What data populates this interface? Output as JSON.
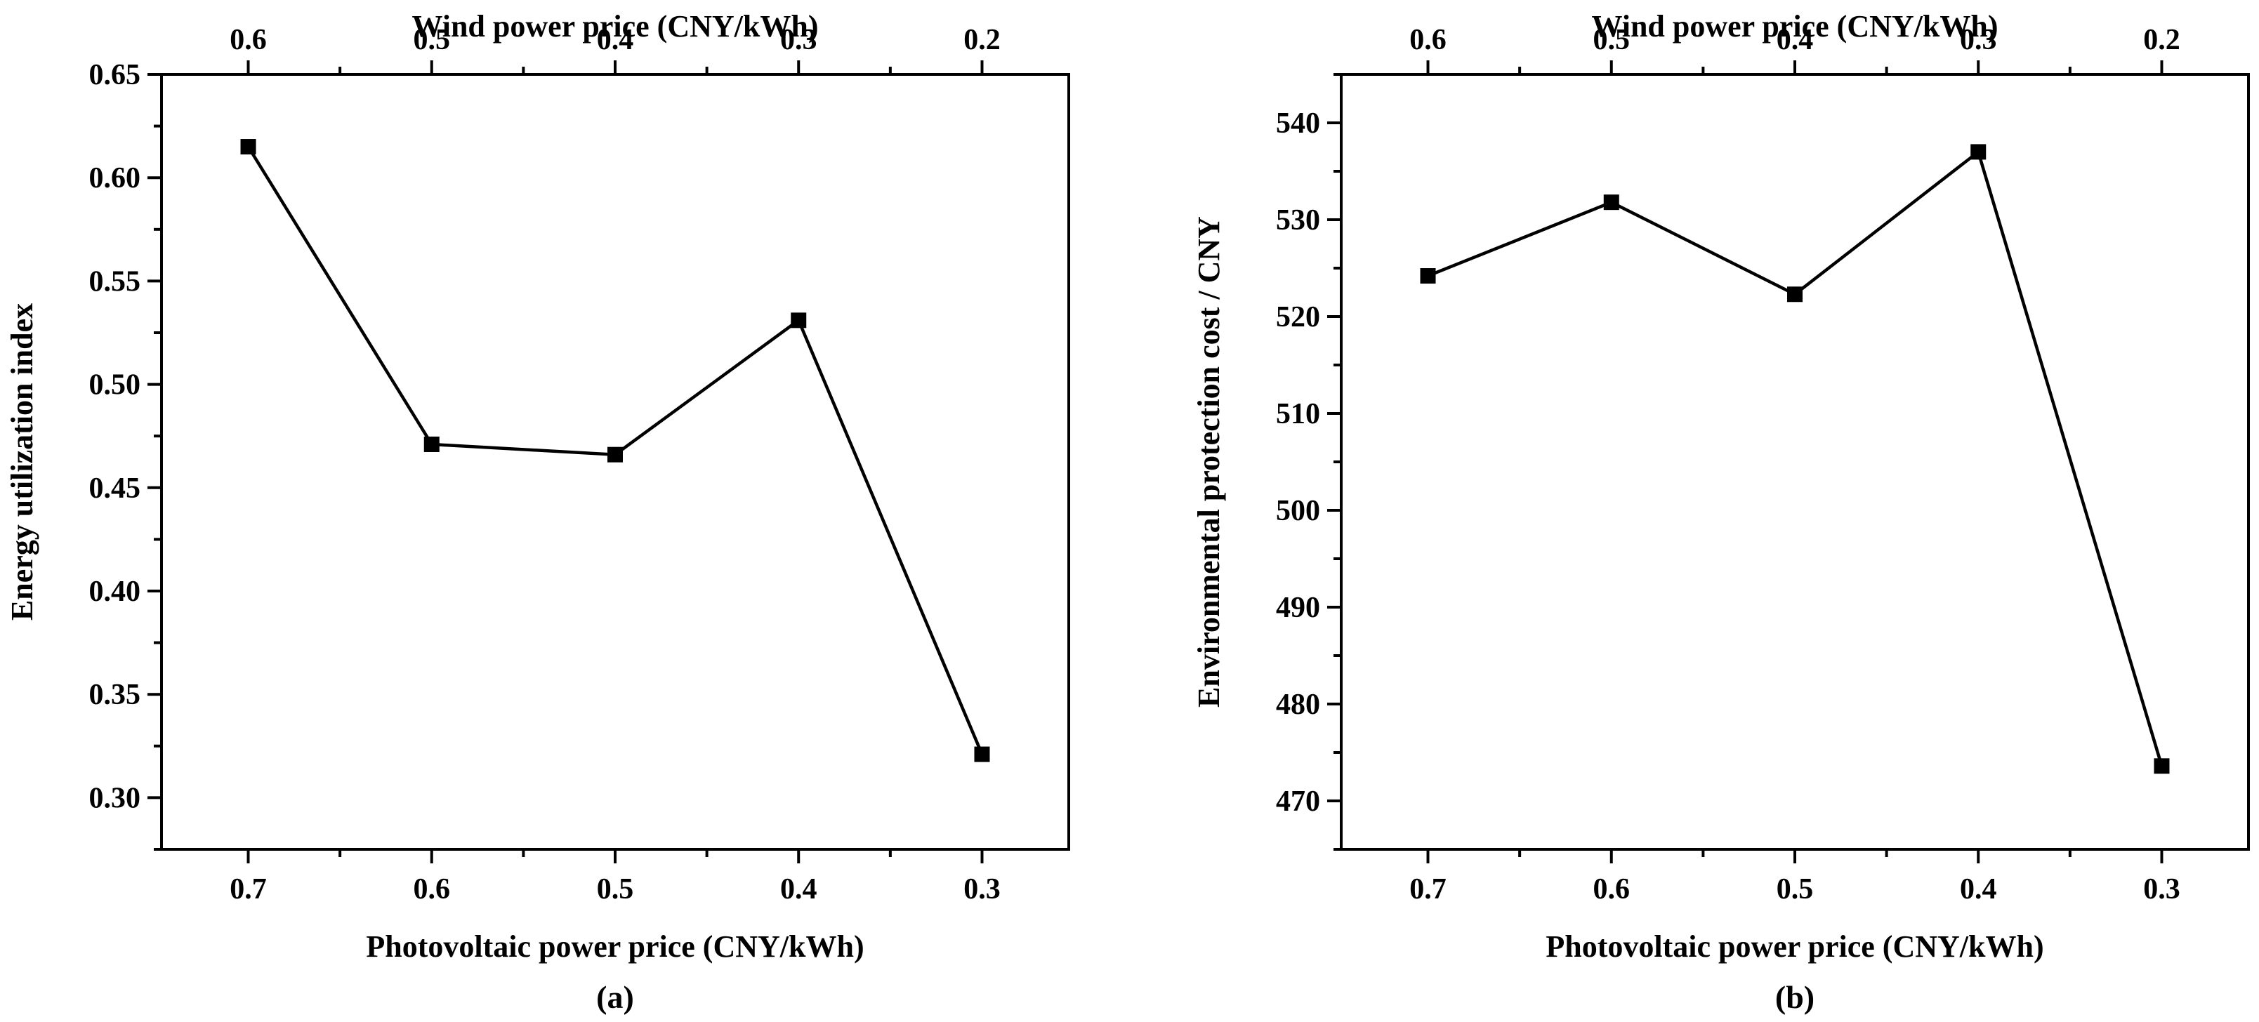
{
  "chart_data": [
    {
      "type": "line",
      "panel_label": "(a)",
      "x": [
        0.7,
        0.6,
        0.5,
        0.4,
        0.3
      ],
      "x_tick_labels": [
        "0.7",
        "0.6",
        "0.5",
        "0.4",
        "0.3"
      ],
      "top_x": [
        0.6,
        0.5,
        0.4,
        0.3,
        0.2
      ],
      "top_tick_labels": [
        "0.6",
        "0.5",
        "0.4",
        "0.3",
        "0.2"
      ],
      "values": [
        0.615,
        0.471,
        0.466,
        0.531,
        0.321
      ],
      "xlabel": "Photovoltaic power price (CNY/kWh)",
      "top_xlabel": "Wind power price (CNY/kWh)",
      "ylabel": "Energy utilization index",
      "ylim": [
        0.275,
        0.65
      ],
      "y_ticks": [
        0.3,
        0.35,
        0.4,
        0.45,
        0.5,
        0.55,
        0.6,
        0.65
      ],
      "y_tick_labels": [
        "0.30",
        "0.35",
        "0.40",
        "0.45",
        "0.50",
        "0.55",
        "0.60",
        "0.65"
      ],
      "y_minor_step": 0.025,
      "marker": "square",
      "color": "#000000",
      "grid": false
    },
    {
      "type": "line",
      "panel_label": "(b)",
      "x": [
        0.7,
        0.6,
        0.5,
        0.4,
        0.3
      ],
      "x_tick_labels": [
        "0.7",
        "0.6",
        "0.5",
        "0.4",
        "0.3"
      ],
      "top_x": [
        0.6,
        0.5,
        0.4,
        0.3,
        0.2
      ],
      "top_tick_labels": [
        "0.6",
        "0.5",
        "0.4",
        "0.3",
        "0.2"
      ],
      "values": [
        524.2,
        531.8,
        522.3,
        537.0,
        473.6
      ],
      "xlabel": "Photovoltaic power price (CNY/kWh)",
      "top_xlabel": "Wind power price (CNY/kWh)",
      "ylabel": "Environmental protection cost / CNY",
      "ylim": [
        465,
        545
      ],
      "y_ticks": [
        470,
        480,
        490,
        500,
        510,
        520,
        530,
        540
      ],
      "y_tick_labels": [
        "470",
        "480",
        "490",
        "500",
        "510",
        "520",
        "530",
        "540"
      ],
      "y_minor_step": 5,
      "marker": "square",
      "color": "#000000",
      "grid": false
    }
  ]
}
